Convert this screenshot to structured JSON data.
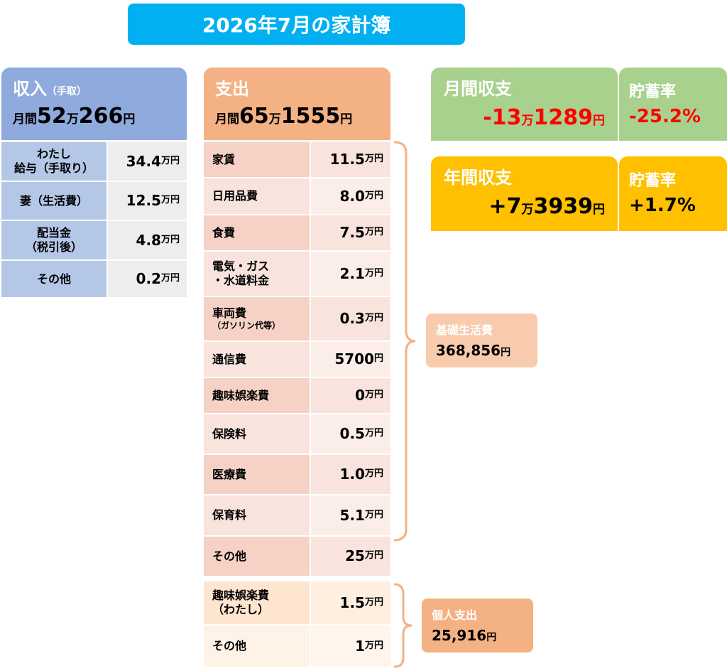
{
  "title": "2026年7月の家計簿",
  "income": {
    "heading": "収入",
    "note": "（手取）",
    "total": [
      "月間",
      "52",
      "万",
      "266",
      "円"
    ],
    "rows": [
      {
        "label": "わたし\n給与（手取り）",
        "value": "34.4",
        "unit": "万円"
      },
      {
        "label": "妻（生活費）",
        "value": "12.5",
        "unit": "万円"
      },
      {
        "label": "配当金\n（税引後）",
        "value": "4.8",
        "unit": "万円"
      },
      {
        "label": "その他",
        "value": "0.2",
        "unit": "万円"
      }
    ]
  },
  "expense": {
    "heading": "支出",
    "total": [
      "月間",
      "65",
      "万",
      "1555",
      "円"
    ],
    "rows": [
      {
        "label": "家賃",
        "value": "11.5",
        "unit": "万円"
      },
      {
        "label": "日用品費",
        "value": "8.0",
        "unit": "万円"
      },
      {
        "label": "食費",
        "value": "7.5",
        "unit": "万円"
      },
      {
        "label": "電気・ガス\n・水道料金",
        "value": "2.1",
        "unit": "万円"
      },
      {
        "label": "車両費",
        "sub": "（ガソリン代等）",
        "value": "0.3",
        "unit": "万円"
      },
      {
        "label": "通信費",
        "value": "5700",
        "unit": "円"
      },
      {
        "label": "趣味娯楽費",
        "value": "0",
        "unit": "万円"
      },
      {
        "label": "保険料",
        "value": "0.5",
        "unit": "万円"
      },
      {
        "label": "医療費",
        "value": "1.0",
        "unit": "万円"
      },
      {
        "label": "保育料",
        "value": "5.1",
        "unit": "万円"
      },
      {
        "label": "その他",
        "value": "25",
        "unit": "万円"
      }
    ],
    "personal_rows": [
      {
        "label": "趣味娯楽費\n（わたし）",
        "value": "1.5",
        "unit": "万円"
      },
      {
        "label": "その他",
        "value": "1",
        "unit": "万円"
      }
    ]
  },
  "groups": {
    "basic": {
      "label": "基礎生活費",
      "amount": [
        "368,856",
        "円"
      ]
    },
    "personal": {
      "label": "個人支出",
      "amount": [
        "25,916",
        "円"
      ]
    }
  },
  "monthly": {
    "label": "月間収支",
    "amount": [
      "-13",
      "万",
      "1289",
      "円"
    ],
    "rate_label": "貯蓄率",
    "rate": "-25.2%"
  },
  "annual": {
    "label": "年間収支",
    "amount": [
      "+7",
      "万",
      "3939",
      "円"
    ],
    "rate_label": "貯蓄率",
    "rate": "+1.7%"
  }
}
